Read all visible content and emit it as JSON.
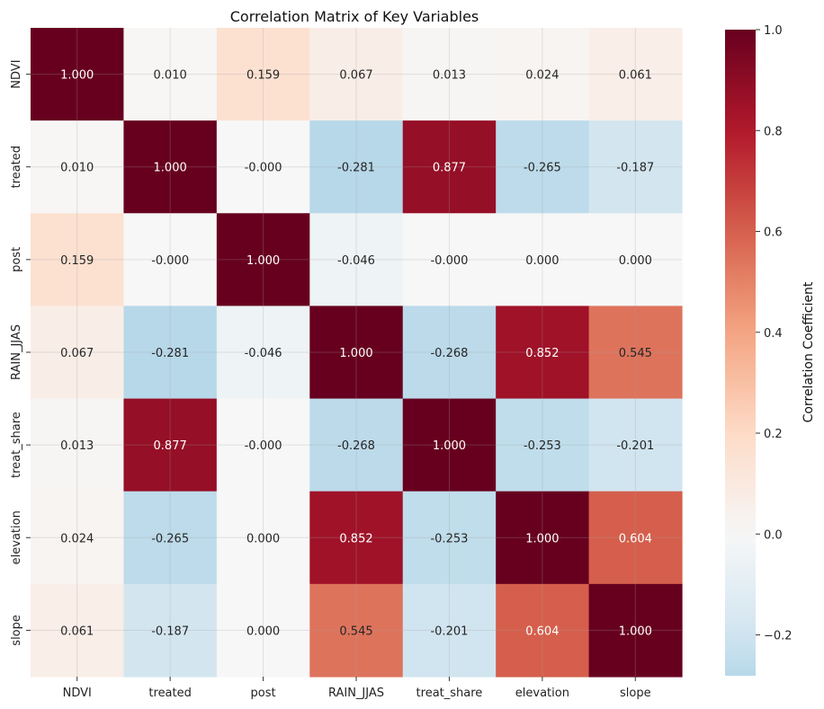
{
  "chart_data": {
    "type": "heatmap",
    "title": "Correlation Matrix of Key Variables",
    "x_labels": [
      "NDVI",
      "treated",
      "post",
      "RAIN_JJAS",
      "treat_share",
      "elevation",
      "slope"
    ],
    "y_labels": [
      "NDVI",
      "treated",
      "post",
      "RAIN_JJAS",
      "treat_share",
      "elevation",
      "slope"
    ],
    "values": [
      [
        1.0,
        0.01,
        0.159,
        0.067,
        0.013,
        0.024,
        0.061
      ],
      [
        0.01,
        1.0,
        -0.0,
        -0.281,
        0.877,
        -0.265,
        -0.187
      ],
      [
        0.159,
        -0.0,
        1.0,
        -0.046,
        -0.0,
        0.0,
        0.0
      ],
      [
        0.067,
        -0.281,
        -0.046,
        1.0,
        -0.268,
        0.852,
        0.545
      ],
      [
        0.013,
        0.877,
        -0.0,
        -0.268,
        1.0,
        -0.253,
        -0.201
      ],
      [
        0.024,
        -0.265,
        0.0,
        0.852,
        -0.253,
        1.0,
        0.604
      ],
      [
        0.061,
        -0.187,
        0.0,
        0.545,
        -0.201,
        0.604,
        1.0
      ]
    ],
    "cell_labels": [
      [
        "1.000",
        "0.010",
        "0.159",
        "0.067",
        "0.013",
        "0.024",
        "0.061"
      ],
      [
        "0.010",
        "1.000",
        "-0.000",
        "-0.281",
        "0.877",
        "-0.265",
        "-0.187"
      ],
      [
        "0.159",
        "-0.000",
        "1.000",
        "-0.046",
        "-0.000",
        "0.000",
        "0.000"
      ],
      [
        "0.067",
        "-0.281",
        "-0.046",
        "1.000",
        "-0.268",
        "0.852",
        "0.545"
      ],
      [
        "0.013",
        "0.877",
        "-0.000",
        "-0.268",
        "1.000",
        "-0.253",
        "-0.201"
      ],
      [
        "0.024",
        "-0.265",
        "0.000",
        "0.852",
        "-0.253",
        "1.000",
        "0.604"
      ],
      [
        "0.061",
        "-0.187",
        "0.000",
        "0.545",
        "-0.201",
        "0.604",
        "1.000"
      ]
    ],
    "colormap": "RdBu_r",
    "center": 0,
    "vmin": -0.281,
    "vmax": 1.0,
    "colorbar": {
      "label": "Correlation Coefficient",
      "ticks": [
        -0.2,
        0.0,
        0.2,
        0.4,
        0.6,
        0.8,
        1.0
      ],
      "tick_labels": [
        "−0.2",
        "0.0",
        "0.2",
        "0.4",
        "0.6",
        "0.8",
        "1.0"
      ]
    },
    "grid": true
  }
}
